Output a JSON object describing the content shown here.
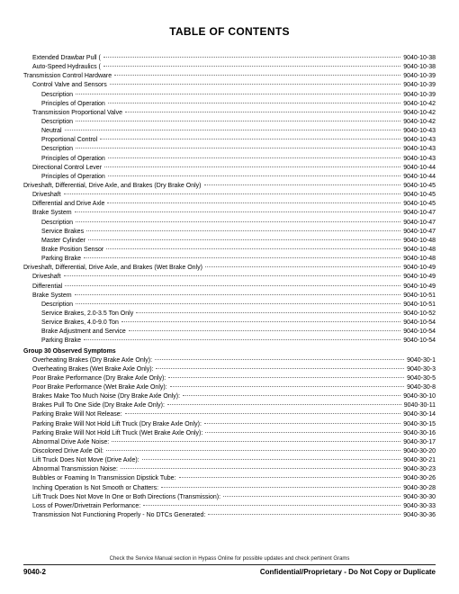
{
  "title": "TABLE OF CONTENTS",
  "entries": [
    {
      "indent": 1,
      "label": "Extended Drawbar Pull (",
      "page": "9040-10-38"
    },
    {
      "indent": 1,
      "label": "Auto-Speed Hydraulics (",
      "page": "9040-10-38"
    },
    {
      "indent": 0,
      "label": "Transmission Control Hardware",
      "page": "9040-10-39"
    },
    {
      "indent": 1,
      "label": "Control Valve and Sensors",
      "page": "9040-10-39"
    },
    {
      "indent": 2,
      "label": "Description",
      "page": "9040-10-39"
    },
    {
      "indent": 2,
      "label": "Principles of Operation",
      "page": "9040-10-42"
    },
    {
      "indent": 1,
      "label": "Transmission Proportional Valve",
      "page": "9040-10-42"
    },
    {
      "indent": 2,
      "label": "Description",
      "page": "9040-10-42"
    },
    {
      "indent": 2,
      "label": "Neutral",
      "page": "9040-10-43"
    },
    {
      "indent": 2,
      "label": "Proportional Control",
      "page": "9040-10-43"
    },
    {
      "indent": 2,
      "label": "Description",
      "page": "9040-10-43"
    },
    {
      "indent": 2,
      "label": "Principles of Operation",
      "page": "9040-10-43"
    },
    {
      "indent": 1,
      "label": "Directional Control Lever",
      "page": "9040-10-44"
    },
    {
      "indent": 2,
      "label": "Principles of Operation",
      "page": "9040-10-44"
    },
    {
      "indent": 0,
      "label": "Driveshaft, Differential, Drive Axle, and Brakes (Dry Brake Only)",
      "page": "9040-10-45"
    },
    {
      "indent": 1,
      "label": "Driveshaft",
      "page": "9040-10-45"
    },
    {
      "indent": 1,
      "label": "Differential and Drive Axle",
      "page": "9040-10-45"
    },
    {
      "indent": 1,
      "label": "Brake System",
      "page": "9040-10-47"
    },
    {
      "indent": 2,
      "label": "Description",
      "page": "9040-10-47"
    },
    {
      "indent": 2,
      "label": "Service Brakes",
      "page": "9040-10-47"
    },
    {
      "indent": 2,
      "label": "Master Cylinder",
      "page": "9040-10-48"
    },
    {
      "indent": 2,
      "label": "Brake Position Sensor",
      "page": "9040-10-48"
    },
    {
      "indent": 2,
      "label": "Parking Brake",
      "page": "9040-10-48"
    },
    {
      "indent": 0,
      "label": "Driveshaft, Differential, Drive Axle, and Brakes (Wet Brake Only)",
      "page": "9040-10-49"
    },
    {
      "indent": 1,
      "label": "Driveshaft",
      "page": "9040-10-49"
    },
    {
      "indent": 1,
      "label": "Differential",
      "page": "9040-10-49"
    },
    {
      "indent": 1,
      "label": "Brake System",
      "page": "9040-10-51"
    },
    {
      "indent": 2,
      "label": "Description",
      "page": "9040-10-51"
    },
    {
      "indent": 2,
      "label": "Service Brakes, 2.0-3.5 Ton Only",
      "page": "9040-10-52"
    },
    {
      "indent": 2,
      "label": "Service Brakes, 4.0-9.0 Ton",
      "page": "9040-10-54"
    },
    {
      "indent": 2,
      "label": "Brake Adjustment and Service",
      "page": "9040-10-54"
    },
    {
      "indent": 2,
      "label": "Parking Brake",
      "page": "9040-10-54"
    }
  ],
  "group_heading": "Group 30 Observed Symptoms",
  "group_entries": [
    {
      "indent": 1,
      "label": "Overheating Brakes (Dry Brake Axle Only):",
      "page": "9040-30-1"
    },
    {
      "indent": 1,
      "label": "Overheating Brakes (Wet Brake Axle Only):",
      "page": "9040-30-3"
    },
    {
      "indent": 1,
      "label": "Poor Brake Performance (Dry Brake Axle Only):",
      "page": "9040-30-5"
    },
    {
      "indent": 1,
      "label": "Poor Brake Performance (Wet Brake Axle Only):",
      "page": "9040-30-8"
    },
    {
      "indent": 1,
      "label": "Brakes Make Too Much Noise (Dry Brake Axle Only):",
      "page": "9040-30-10"
    },
    {
      "indent": 1,
      "label": "Brakes Pull To One Side (Dry Brake Axle Only):",
      "page": "9040-30-11"
    },
    {
      "indent": 1,
      "label": "Parking Brake Will Not Release:",
      "page": "9040-30-14"
    },
    {
      "indent": 1,
      "label": "Parking Brake Will Not Hold Lift Truck (Dry Brake Axle Only):",
      "page": "9040-30-15"
    },
    {
      "indent": 1,
      "label": "Parking Brake Will Not Hold Lift Truck (Wet Brake Axle Only):",
      "page": "9040-30-16"
    },
    {
      "indent": 1,
      "label": "Abnormal Drive Axle Noise:",
      "page": "9040-30-17"
    },
    {
      "indent": 1,
      "label": "Discolored Drive Axle Oil:",
      "page": "9040-30-20"
    },
    {
      "indent": 1,
      "label": "Lift Truck Does Not Move (Drive Axle):",
      "page": "9040-30-21"
    },
    {
      "indent": 1,
      "label": "Abnormal Transmission Noise:",
      "page": "9040-30-23"
    },
    {
      "indent": 1,
      "label": "Bubbles or Foaming In Transmission Dipstick Tube:",
      "page": "9040-30-26"
    },
    {
      "indent": 1,
      "label": "Inching Operation Is Not Smooth or Chatters:",
      "page": "9040-30-28"
    },
    {
      "indent": 1,
      "label": "Lift Truck Does Not Move In One or Both Directions (Transmission):",
      "page": "9040-30-30"
    },
    {
      "indent": 1,
      "label": "Loss of Power/Drivetrain Performance:",
      "page": "9040-30-33"
    },
    {
      "indent": 1,
      "label": "Transmission Not Functioning Properly - No DTCs Generated:",
      "page": "9040-30-36"
    }
  ],
  "footer_note": "Check the Service Manual section in Hypass Online for possible updates and check pertinent Grams",
  "footer_left": "9040-2",
  "footer_right": "Confidential/Proprietary - Do Not Copy or Duplicate"
}
